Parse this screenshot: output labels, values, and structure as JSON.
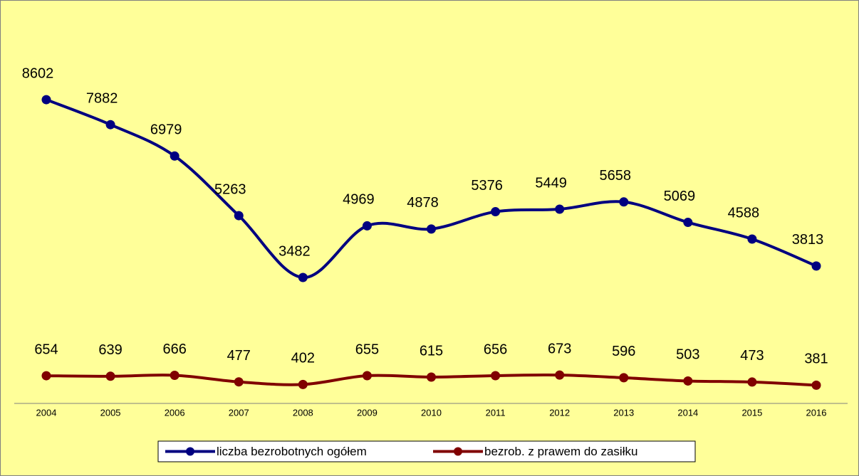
{
  "chart_data": {
    "type": "line",
    "categories": [
      "2004",
      "2005",
      "2006",
      "2007",
      "2008",
      "2009",
      "2010",
      "2011",
      "2012",
      "2013",
      "2014",
      "2015",
      "2016"
    ],
    "series": [
      {
        "name": "liczba bezrobotnych ogółem",
        "color": "#000080",
        "values": [
          8602,
          7882,
          6979,
          5263,
          3482,
          4969,
          4878,
          5376,
          5449,
          5658,
          5069,
          4588,
          3813
        ]
      },
      {
        "name": "bezrob. z prawem do zasiłku",
        "color": "#800000",
        "values": [
          654,
          639,
          666,
          477,
          402,
          655,
          615,
          656,
          673,
          596,
          503,
          473,
          381
        ]
      }
    ],
    "ylim": [
      0,
      11000
    ],
    "legend": "bottom"
  }
}
